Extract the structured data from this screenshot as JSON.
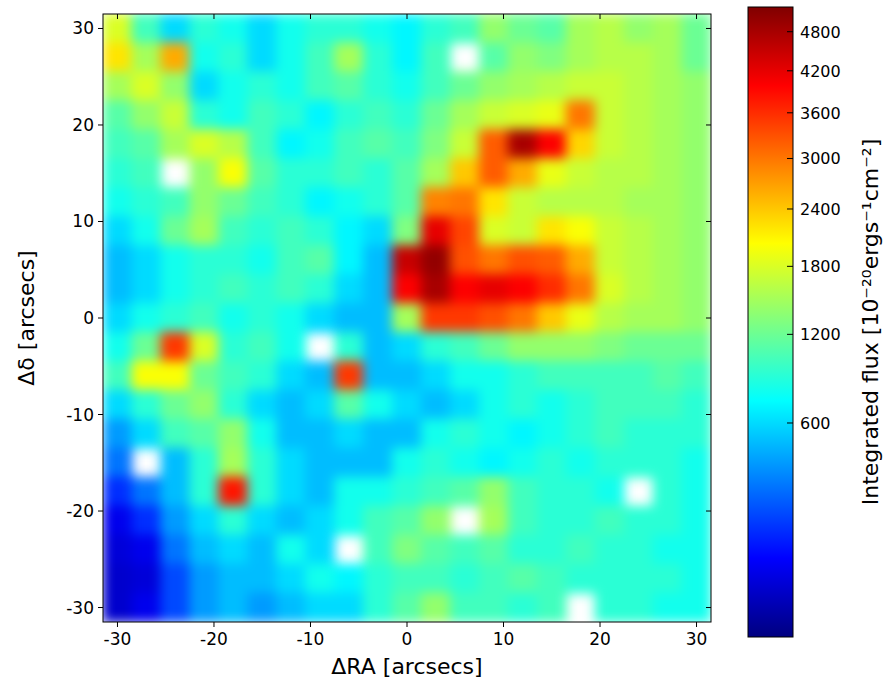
{
  "chart_data": {
    "type": "heatmap",
    "xlabel": "ΔRA [arcsecs]",
    "ylabel": "Δδ [arcsecs]",
    "x": [
      -30,
      -27,
      -24,
      -21,
      -18,
      -15,
      -12,
      -9,
      -6,
      -3,
      0,
      3,
      6,
      9,
      12,
      15,
      18,
      21,
      24,
      27,
      30
    ],
    "y": [
      30,
      27,
      24,
      21,
      18,
      15,
      12,
      9,
      6,
      3,
      0,
      -3,
      -6,
      -9,
      -12,
      -15,
      -18,
      -21,
      -24,
      -27,
      -30
    ],
    "xlim": [
      -31.5,
      31.5
    ],
    "ylim": [
      -31.5,
      31.5
    ],
    "xticks": [
      -30,
      -20,
      -10,
      0,
      10,
      20,
      30
    ],
    "yticks": [
      -30,
      -20,
      -10,
      0,
      10,
      20,
      30
    ],
    "cells": [
      [
        1800,
        1000,
        600,
        900,
        800,
        600,
        800,
        900,
        900,
        800,
        700,
        900,
        1000,
        1400,
        1200,
        1100,
        1500,
        1600,
        1400,
        1500,
        1200
      ],
      [
        2200,
        1500,
        2600,
        800,
        900,
        600,
        800,
        1000,
        1500,
        900,
        700,
        1000,
        null,
        1100,
        1400,
        1300,
        1500,
        1600,
        1600,
        1500,
        1200
      ],
      [
        1500,
        1800,
        1400,
        600,
        800,
        900,
        800,
        1000,
        1100,
        900,
        800,
        1000,
        1200,
        1400,
        1500,
        1600,
        1700,
        1700,
        1600,
        1500,
        1400
      ],
      [
        1100,
        1400,
        1700,
        900,
        800,
        1000,
        900,
        700,
        900,
        1000,
        900,
        1200,
        1500,
        1700,
        1800,
        1900,
        3000,
        1700,
        1600,
        1500,
        1400
      ],
      [
        1000,
        1100,
        1500,
        1800,
        1600,
        1000,
        700,
        800,
        1000,
        1100,
        1000,
        1300,
        1700,
        3200,
        4800,
        4000,
        2300,
        1700,
        1600,
        1500,
        1400
      ],
      [
        900,
        1000,
        null,
        1400,
        2000,
        1100,
        900,
        900,
        1000,
        900,
        1100,
        1500,
        2400,
        3200,
        2600,
        1900,
        1700,
        1600,
        1600,
        1500,
        1400
      ],
      [
        800,
        900,
        1000,
        1400,
        1200,
        1000,
        900,
        700,
        800,
        900,
        1100,
        2900,
        3000,
        2200,
        1700,
        1600,
        1600,
        1600,
        1500,
        1500,
        1400
      ],
      [
        600,
        800,
        1200,
        1500,
        1000,
        900,
        1000,
        900,
        700,
        600,
        1300,
        4200,
        3400,
        1800,
        1700,
        2200,
        2000,
        1700,
        1600,
        1500,
        1400
      ],
      [
        500,
        600,
        800,
        900,
        900,
        800,
        1000,
        1100,
        700,
        500,
        4500,
        5000,
        3300,
        3000,
        3300,
        3200,
        2600,
        1700,
        1600,
        1500,
        1400
      ],
      [
        500,
        600,
        800,
        900,
        1000,
        900,
        1000,
        900,
        600,
        500,
        4000,
        4800,
        4000,
        4200,
        4000,
        3600,
        3000,
        1800,
        1600,
        1500,
        1400
      ],
      [
        600,
        800,
        900,
        1000,
        800,
        900,
        800,
        600,
        500,
        500,
        1500,
        3500,
        3500,
        3300,
        3000,
        2400,
        1900,
        1600,
        1500,
        1500,
        1400
      ],
      [
        800,
        1200,
        3500,
        1800,
        900,
        1000,
        800,
        null,
        900,
        500,
        600,
        900,
        1000,
        1200,
        1400,
        1400,
        1400,
        1300,
        1200,
        1200,
        1200
      ],
      [
        1000,
        2000,
        2000,
        1200,
        1000,
        900,
        600,
        500,
        3500,
        500,
        500,
        600,
        800,
        800,
        900,
        1000,
        1000,
        1000,
        1000,
        1100,
        1000
      ],
      [
        600,
        900,
        1200,
        1400,
        900,
        600,
        500,
        600,
        1100,
        800,
        600,
        500,
        600,
        800,
        900,
        800,
        900,
        1000,
        1000,
        1000,
        900
      ],
      [
        400,
        600,
        1000,
        1100,
        1400,
        800,
        500,
        500,
        600,
        500,
        500,
        800,
        900,
        800,
        700,
        800,
        900,
        1000,
        900,
        900,
        900
      ],
      [
        300,
        null,
        500,
        900,
        1500,
        900,
        600,
        500,
        500,
        500,
        800,
        900,
        800,
        700,
        800,
        900,
        800,
        900,
        900,
        900,
        800
      ],
      [
        150,
        300,
        500,
        900,
        3800,
        900,
        600,
        500,
        800,
        800,
        900,
        1000,
        1100,
        1400,
        1000,
        900,
        900,
        800,
        null,
        900,
        800
      ],
      [
        60,
        150,
        400,
        600,
        900,
        600,
        500,
        600,
        800,
        1000,
        1100,
        1400,
        null,
        1500,
        1000,
        900,
        900,
        1000,
        900,
        900,
        800
      ],
      [
        40,
        60,
        300,
        500,
        600,
        500,
        800,
        600,
        null,
        1000,
        1300,
        1100,
        1000,
        1100,
        900,
        900,
        1000,
        900,
        900,
        800,
        800
      ],
      [
        30,
        40,
        200,
        400,
        500,
        500,
        600,
        800,
        700,
        900,
        1000,
        1000,
        900,
        1000,
        1100,
        1000,
        900,
        900,
        900,
        900,
        800
      ],
      [
        30,
        60,
        200,
        400,
        500,
        400,
        500,
        600,
        600,
        900,
        1100,
        1400,
        1000,
        1000,
        900,
        1000,
        null,
        900,
        900,
        800,
        800
      ]
    ],
    "colorbar": {
      "label": "Integrated flux [10⁻²⁰ergs⁻¹cm⁻²]",
      "range": [
        0,
        5200
      ],
      "ticks": [
        600,
        1200,
        1800,
        2400,
        3000,
        3600,
        4200,
        4800
      ]
    }
  }
}
